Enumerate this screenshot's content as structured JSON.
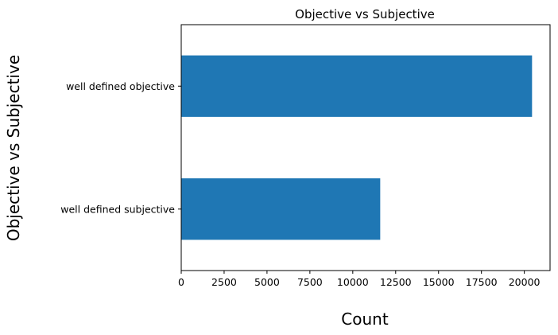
{
  "chart_data": {
    "type": "bar",
    "orientation": "horizontal",
    "title": "Objective vs Subjective",
    "xlabel": "Count",
    "ylabel": "Objective vs Subjective",
    "categories": [
      "well defined objective",
      "well defined subjective"
    ],
    "values": [
      20450,
      11600
    ],
    "xlim": [
      0,
      21500
    ],
    "xticks": [
      0,
      2500,
      5000,
      7500,
      10000,
      12500,
      15000,
      17500,
      20000
    ],
    "grid": false,
    "legend": "none",
    "bar_color": "#1f77b4"
  }
}
